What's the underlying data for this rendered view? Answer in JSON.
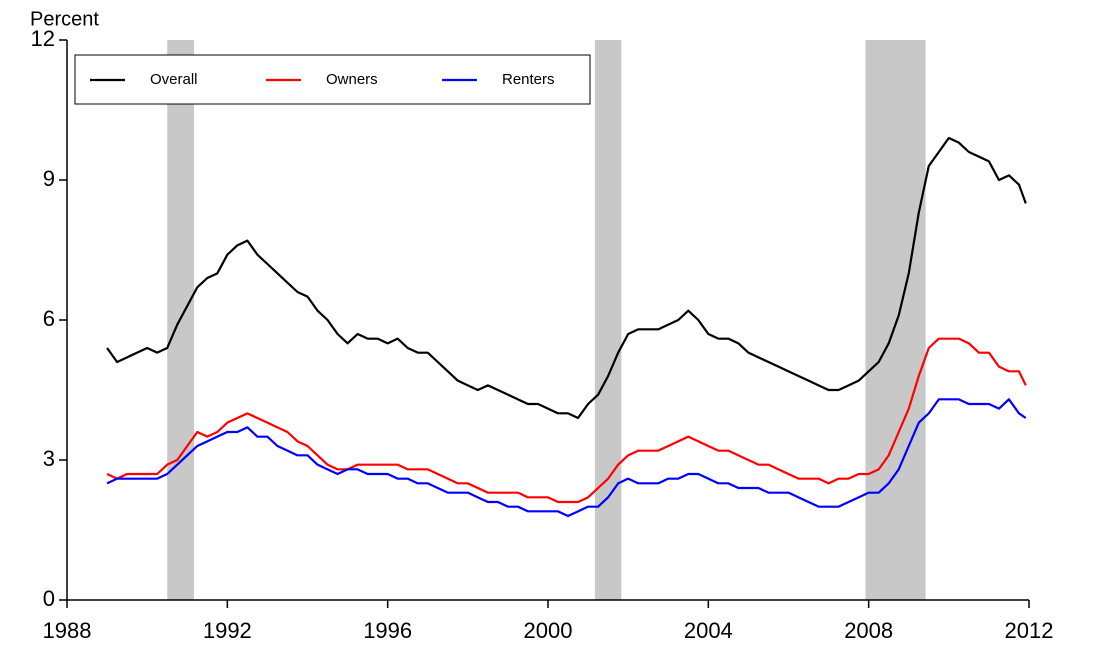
{
  "chart_data": {
    "type": "line",
    "y_label": "Percent",
    "xlim": [
      1988,
      2012
    ],
    "xticks": [
      1988,
      1992,
      1996,
      2000,
      2004,
      2008,
      2012
    ],
    "ylim": [
      0,
      12
    ],
    "yticks": [
      0,
      3,
      6,
      9,
      12
    ],
    "legend": "top-left",
    "shade_color": "#c8c8c8",
    "shaded_regions": [
      [
        1990.5,
        1991.17
      ],
      [
        2001.17,
        2001.83
      ],
      [
        2007.92,
        2009.42
      ]
    ],
    "x": [
      1989,
      1989.25,
      1989.5,
      1989.75,
      1990,
      1990.25,
      1990.5,
      1990.75,
      1991,
      1991.25,
      1991.5,
      1991.75,
      1992,
      1992.25,
      1992.5,
      1992.75,
      1993,
      1993.25,
      1993.5,
      1993.75,
      1994,
      1994.25,
      1994.5,
      1994.75,
      1995,
      1995.25,
      1995.5,
      1995.75,
      1996,
      1996.25,
      1996.5,
      1996.75,
      1997,
      1997.25,
      1997.5,
      1997.75,
      1998,
      1998.25,
      1998.5,
      1998.75,
      1999,
      1999.25,
      1999.5,
      1999.75,
      2000,
      2000.25,
      2000.5,
      2000.75,
      2001,
      2001.25,
      2001.5,
      2001.75,
      2002,
      2002.25,
      2002.5,
      2002.75,
      2003,
      2003.25,
      2003.5,
      2003.75,
      2004,
      2004.25,
      2004.5,
      2004.75,
      2005,
      2005.25,
      2005.5,
      2005.75,
      2006,
      2006.25,
      2006.5,
      2006.75,
      2007,
      2007.25,
      2007.5,
      2007.75,
      2008,
      2008.25,
      2008.5,
      2008.75,
      2009,
      2009.25,
      2009.5,
      2009.75,
      2010,
      2010.25,
      2010.5,
      2010.75,
      2011,
      2011.25,
      2011.5,
      2011.75,
      2011.92
    ],
    "series": [
      {
        "name": "Overall",
        "color": "#000000",
        "values": [
          5.4,
          5.1,
          5.2,
          5.3,
          5.4,
          5.3,
          5.4,
          5.9,
          6.3,
          6.7,
          6.9,
          7.0,
          7.4,
          7.6,
          7.7,
          7.4,
          7.2,
          7.0,
          6.8,
          6.6,
          6.5,
          6.2,
          6.0,
          5.7,
          5.5,
          5.7,
          5.6,
          5.6,
          5.5,
          5.6,
          5.4,
          5.3,
          5.3,
          5.1,
          4.9,
          4.7,
          4.6,
          4.5,
          4.6,
          4.5,
          4.4,
          4.3,
          4.2,
          4.2,
          4.1,
          4.0,
          4.0,
          3.9,
          4.2,
          4.4,
          4.8,
          5.3,
          5.7,
          5.8,
          5.8,
          5.8,
          5.9,
          6.0,
          6.2,
          6.0,
          5.7,
          5.6,
          5.6,
          5.5,
          5.3,
          5.2,
          5.1,
          5.0,
          4.9,
          4.8,
          4.7,
          4.6,
          4.5,
          4.5,
          4.6,
          4.7,
          4.9,
          5.1,
          5.5,
          6.1,
          7.0,
          8.3,
          9.3,
          9.6,
          9.9,
          9.8,
          9.6,
          9.5,
          9.4,
          9.0,
          9.1,
          8.9,
          8.5
        ]
      },
      {
        "name": "Owners",
        "color": "#ff0000",
        "values": [
          2.7,
          2.6,
          2.7,
          2.7,
          2.7,
          2.7,
          2.9,
          3.0,
          3.3,
          3.6,
          3.5,
          3.6,
          3.8,
          3.9,
          4.0,
          3.9,
          3.8,
          3.7,
          3.6,
          3.4,
          3.3,
          3.1,
          2.9,
          2.8,
          2.8,
          2.9,
          2.9,
          2.9,
          2.9,
          2.9,
          2.8,
          2.8,
          2.8,
          2.7,
          2.6,
          2.5,
          2.5,
          2.4,
          2.3,
          2.3,
          2.3,
          2.3,
          2.2,
          2.2,
          2.2,
          2.1,
          2.1,
          2.1,
          2.2,
          2.4,
          2.6,
          2.9,
          3.1,
          3.2,
          3.2,
          3.2,
          3.3,
          3.4,
          3.5,
          3.4,
          3.3,
          3.2,
          3.2,
          3.1,
          3.0,
          2.9,
          2.9,
          2.8,
          2.7,
          2.6,
          2.6,
          2.6,
          2.5,
          2.6,
          2.6,
          2.7,
          2.7,
          2.8,
          3.1,
          3.6,
          4.1,
          4.8,
          5.4,
          5.6,
          5.6,
          5.6,
          5.5,
          5.3,
          5.3,
          5.0,
          4.9,
          4.9,
          4.6
        ]
      },
      {
        "name": "Renters",
        "color": "#0000ff",
        "values": [
          2.5,
          2.6,
          2.6,
          2.6,
          2.6,
          2.6,
          2.7,
          2.9,
          3.1,
          3.3,
          3.4,
          3.5,
          3.6,
          3.6,
          3.7,
          3.5,
          3.5,
          3.3,
          3.2,
          3.1,
          3.1,
          2.9,
          2.8,
          2.7,
          2.8,
          2.8,
          2.7,
          2.7,
          2.7,
          2.6,
          2.6,
          2.5,
          2.5,
          2.4,
          2.3,
          2.3,
          2.3,
          2.2,
          2.1,
          2.1,
          2.0,
          2.0,
          1.9,
          1.9,
          1.9,
          1.9,
          1.8,
          1.9,
          2.0,
          2.0,
          2.2,
          2.5,
          2.6,
          2.5,
          2.5,
          2.5,
          2.6,
          2.6,
          2.7,
          2.7,
          2.6,
          2.5,
          2.5,
          2.4,
          2.4,
          2.4,
          2.3,
          2.3,
          2.3,
          2.2,
          2.1,
          2.0,
          2.0,
          2.0,
          2.1,
          2.2,
          2.3,
          2.3,
          2.5,
          2.8,
          3.3,
          3.8,
          4.0,
          4.3,
          4.3,
          4.3,
          4.2,
          4.2,
          4.2,
          4.1,
          4.3,
          4.0,
          3.9
        ]
      }
    ]
  }
}
